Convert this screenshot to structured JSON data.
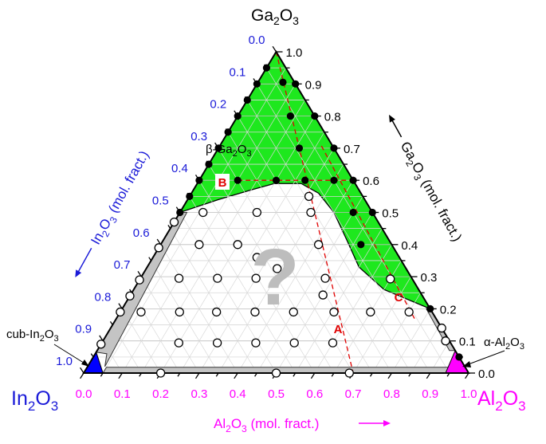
{
  "labels": {
    "top_vertex": [
      "Ga",
      "2",
      "O",
      "3"
    ],
    "left_vertex": [
      "In",
      "2",
      "O",
      "3"
    ],
    "right_vertex": [
      "Al",
      "2",
      "O",
      "3"
    ],
    "bottom_axis_title": [
      "Al",
      "2",
      "O",
      "3",
      " (mol. fract.)"
    ],
    "left_axis_title": [
      "In",
      "2",
      "O",
      "3",
      " (mol. fract.)"
    ],
    "right_axis_title": [
      "Ga",
      "2",
      "O",
      "3",
      " (mol. fract.)"
    ],
    "beta_phase": [
      "β-Ga",
      "2",
      "O",
      "3"
    ],
    "cub_phase": [
      "cub-In",
      "2",
      "O",
      "3"
    ],
    "alpha_phase": [
      "α-Al",
      "2",
      "O",
      "3"
    ],
    "unknown_region": "?"
  },
  "colors": {
    "beta_region": "#1ee81e",
    "cub_region": "#0000ff",
    "alpha_region": "#ff00ff",
    "band": "#c4c4c4",
    "dashed_lines": "#e00000",
    "in_axis": "#1a1ad8",
    "al_axis": "#ff00ff",
    "ga_axis": "#000000"
  },
  "chart_data": {
    "type": "scatter",
    "subtype": "ternary",
    "components": [
      "In2O3",
      "Al2O3",
      "Ga2O3"
    ],
    "axes": {
      "In2O3": {
        "title": "In2O3 (mol. fract.)",
        "ticks": [
          "0.0",
          "0.1",
          "0.2",
          "0.3",
          "0.4",
          "0.5",
          "0.6",
          "0.7",
          "0.8",
          "0.9",
          "1.0"
        ],
        "range": [
          0,
          1
        ]
      },
      "Al2O3": {
        "title": "Al2O3 (mol. fract.)",
        "ticks": [
          "0.0",
          "0.1",
          "0.2",
          "0.3",
          "0.4",
          "0.5",
          "0.6",
          "0.7",
          "0.8",
          "0.9",
          "1.0"
        ],
        "range": [
          0,
          1
        ]
      },
      "Ga2O3": {
        "title": "Ga2O3 (mol. fract.)",
        "ticks": [
          "0.0",
          "0.1",
          "0.2",
          "0.3",
          "0.4",
          "0.5",
          "0.6",
          "0.7",
          "0.8",
          "0.9",
          "1.0"
        ],
        "range": [
          0,
          1
        ]
      }
    },
    "grid": true,
    "point_coords": "[Al2O3, Ga2O3]",
    "filled_points": [
      [
        0,
        0.95
      ],
      [
        0,
        0.9
      ],
      [
        0,
        0.85
      ],
      [
        0,
        0.8
      ],
      [
        0,
        0.75
      ],
      [
        0,
        0.7
      ],
      [
        0,
        0.65
      ],
      [
        0,
        0.6
      ],
      [
        0,
        0.55
      ],
      [
        0,
        0.5
      ],
      [
        0.1,
        0.9
      ],
      [
        0.2,
        0.8
      ],
      [
        0.3,
        0.7
      ],
      [
        0.4,
        0.6
      ],
      [
        0.5,
        0.5
      ],
      [
        0.95,
        0.05
      ],
      [
        0.065,
        0.905
      ],
      [
        0.137,
        0.8
      ],
      [
        0.21,
        0.7
      ],
      [
        0.1,
        0.6
      ],
      [
        0.2,
        0.6
      ],
      [
        0.275,
        0.6
      ],
      [
        0.35,
        0.6
      ],
      [
        0.45,
        0.5
      ],
      [
        0.52,
        0.4
      ],
      [
        0.8,
        0.2
      ]
    ],
    "open_points": [
      [
        0.06,
        0.5
      ],
      [
        0.2,
        0.5
      ],
      [
        0.34,
        0.5
      ],
      [
        0.31,
        0.55
      ],
      [
        0.1,
        0.4
      ],
      [
        0.2,
        0.4
      ],
      [
        0.41,
        0.4
      ],
      [
        0.27,
        0.36
      ],
      [
        0.1,
        0.295
      ],
      [
        0.2,
        0.295
      ],
      [
        0.3,
        0.295
      ],
      [
        0.34,
        0.325
      ],
      [
        0.48,
        0.295
      ],
      [
        0.65,
        0.293
      ],
      [
        0.5,
        0.243
      ],
      [
        0.054,
        0.19
      ],
      [
        0.154,
        0.19
      ],
      [
        0.25,
        0.19
      ],
      [
        0.35,
        0.19
      ],
      [
        0.45,
        0.19
      ],
      [
        0.555,
        0.19
      ],
      [
        0.65,
        0.19
      ],
      [
        0.75,
        0.19
      ],
      [
        0.2,
        0.094
      ],
      [
        0.3,
        0.094
      ],
      [
        0.4,
        0.094
      ],
      [
        0.5,
        0.094
      ],
      [
        0.6,
        0.094
      ],
      [
        0,
        0.47
      ],
      [
        0,
        0.39
      ],
      [
        0,
        0.29
      ],
      [
        0,
        0.24
      ],
      [
        0,
        0.19
      ],
      [
        0,
        0.09
      ],
      [
        0.2,
        0
      ],
      [
        0.5,
        0
      ],
      [
        0.69,
        0
      ],
      [
        0.86,
        0.14
      ],
      [
        0.89,
        0.1
      ]
    ],
    "lines": [
      {
        "label": "A",
        "from": [
          0,
          1
        ],
        "to": [
          0.7,
          0
        ]
      },
      {
        "label": "B",
        "from": [
          0.1,
          0.6
        ],
        "to": [
          0.4,
          0.6
        ]
      },
      {
        "label": "C",
        "from": [
          0.264,
          0.707
        ],
        "to": [
          0.775,
          0.169
        ]
      }
    ],
    "regions": {
      "beta_Ga2O3_boundary": [
        [
          0,
          1
        ],
        [
          0.8,
          0.2
        ],
        [
          0.65,
          0.26
        ],
        [
          0.55,
          0.33
        ],
        [
          0.48,
          0.41
        ],
        [
          0.4,
          0.5
        ],
        [
          0.33,
          0.56
        ],
        [
          0.27,
          0.59
        ],
        [
          0.2,
          0.59
        ],
        [
          0.15,
          0.57
        ],
        [
          0.08,
          0.54
        ],
        [
          0,
          0.5
        ]
      ],
      "cub_In2O3": [
        [
          0,
          0
        ],
        [
          0.05,
          0
        ],
        [
          0,
          0.065
        ]
      ],
      "alpha_Al2O3": [
        [
          0.94,
          0
        ],
        [
          1,
          0
        ],
        [
          0.93,
          0.07
        ]
      ]
    }
  }
}
